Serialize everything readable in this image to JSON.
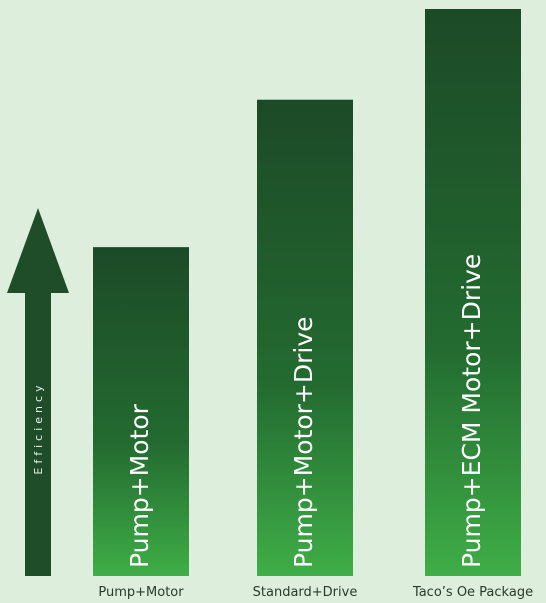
{
  "chart_data": {
    "type": "bar",
    "categories": [
      "Pump+Motor",
      "Standard+Drive",
      "Taco’s Oe Package"
    ],
    "bar_labels": [
      "Pump+Motor",
      "Pump+Motor+Drive",
      "Pump+ECM Motor+Drive"
    ],
    "values": [
      58,
      84,
      100
    ],
    "ylim": [
      0,
      100
    ],
    "ylabel": "Efficiency",
    "grid": false,
    "legend": "none",
    "colors": {
      "background": "#ddeedd",
      "bar_top": "#1c4a27",
      "bar_mid": "#236b30",
      "bar_bottom": "#3fae47",
      "arrow": "#1f4d2a",
      "category_text": "#2c3a2c",
      "bar_text": "#ffffff"
    }
  }
}
